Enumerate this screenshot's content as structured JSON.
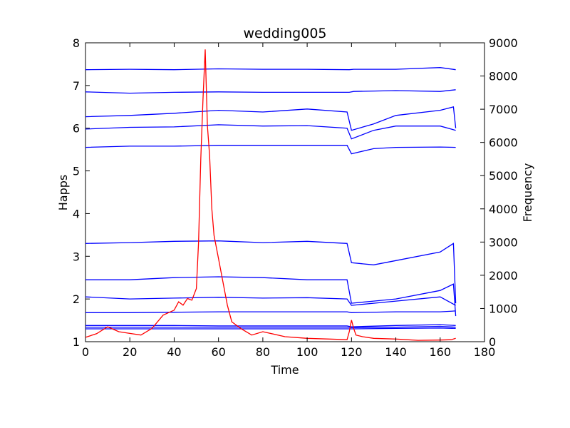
{
  "chart_data": {
    "type": "line",
    "title": "wedding005",
    "xlabel": "Time",
    "ylabel": "Happs",
    "y2label": "Frequency",
    "xlim": [
      0,
      180
    ],
    "ylim": [
      1,
      8
    ],
    "y2lim": [
      0,
      9000
    ],
    "x_ticks": [
      "0",
      "20",
      "40",
      "60",
      "80",
      "100",
      "120",
      "140",
      "160",
      "180"
    ],
    "y_ticks": [
      "1",
      "2",
      "3",
      "4",
      "5",
      "6",
      "7",
      "8"
    ],
    "y2_ticks": [
      "0",
      "1000",
      "2000",
      "3000",
      "4000",
      "5000",
      "6000",
      "7000",
      "8000",
      "9000"
    ],
    "grid": false,
    "happs_color": "#0000ff",
    "frequency_color": "#ff0000",
    "happs_series": [
      {
        "x": [
          0,
          20,
          40,
          60,
          80,
          100,
          119,
          121,
          140,
          160,
          167
        ],
        "y": [
          7.37,
          7.38,
          7.37,
          7.39,
          7.38,
          7.38,
          7.37,
          7.38,
          7.38,
          7.42,
          7.37
        ]
      },
      {
        "x": [
          0,
          20,
          40,
          60,
          80,
          100,
          119,
          121,
          140,
          160,
          167
        ],
        "y": [
          6.85,
          6.82,
          6.84,
          6.85,
          6.84,
          6.84,
          6.84,
          6.86,
          6.88,
          6.86,
          6.9
        ]
      },
      {
        "x": [
          0,
          20,
          40,
          60,
          80,
          100,
          118,
          120,
          130,
          140,
          160,
          166,
          167
        ],
        "y": [
          6.27,
          6.3,
          6.35,
          6.42,
          6.38,
          6.45,
          6.38,
          5.95,
          6.1,
          6.3,
          6.42,
          6.5,
          6.0
        ]
      },
      {
        "x": [
          0,
          20,
          40,
          60,
          80,
          100,
          118,
          120,
          130,
          140,
          160,
          167
        ],
        "y": [
          5.98,
          6.02,
          6.03,
          6.08,
          6.05,
          6.06,
          6.0,
          5.75,
          5.95,
          6.05,
          6.05,
          5.95
        ]
      },
      {
        "x": [
          0,
          20,
          40,
          60,
          80,
          100,
          118,
          120,
          130,
          140,
          160,
          167
        ],
        "y": [
          5.55,
          5.58,
          5.58,
          5.6,
          5.6,
          5.6,
          5.6,
          5.4,
          5.52,
          5.55,
          5.56,
          5.55
        ]
      },
      {
        "x": [
          0,
          20,
          40,
          60,
          80,
          100,
          118,
          120,
          130,
          140,
          160,
          166,
          167
        ],
        "y": [
          3.3,
          3.32,
          3.35,
          3.36,
          3.32,
          3.35,
          3.3,
          2.85,
          2.8,
          2.9,
          3.1,
          3.3,
          1.9
        ]
      },
      {
        "x": [
          0,
          20,
          40,
          60,
          80,
          100,
          118,
          120,
          130,
          140,
          160,
          166,
          167
        ],
        "y": [
          2.45,
          2.45,
          2.5,
          2.52,
          2.5,
          2.45,
          2.45,
          1.9,
          1.95,
          2.0,
          2.2,
          2.35,
          1.6
        ]
      },
      {
        "x": [
          0,
          20,
          40,
          60,
          80,
          100,
          118,
          120,
          130,
          140,
          160,
          167
        ],
        "y": [
          2.05,
          2.0,
          2.02,
          2.04,
          2.02,
          2.03,
          2.0,
          1.85,
          1.9,
          1.95,
          2.05,
          1.85
        ]
      },
      {
        "x": [
          0,
          20,
          40,
          60,
          80,
          100,
          118,
          120,
          140,
          160,
          167
        ],
        "y": [
          1.68,
          1.68,
          1.69,
          1.7,
          1.7,
          1.7,
          1.7,
          1.68,
          1.7,
          1.7,
          1.72
        ]
      },
      {
        "x": [
          0,
          20,
          40,
          60,
          80,
          100,
          118,
          120,
          140,
          160,
          167
        ],
        "y": [
          1.38,
          1.38,
          1.38,
          1.37,
          1.37,
          1.37,
          1.37,
          1.35,
          1.38,
          1.4,
          1.38
        ]
      },
      {
        "x": [
          0,
          20,
          40,
          60,
          80,
          100,
          118,
          120,
          140,
          160,
          167
        ],
        "y": [
          1.34,
          1.34,
          1.34,
          1.34,
          1.34,
          1.34,
          1.34,
          1.33,
          1.34,
          1.36,
          1.34
        ]
      },
      {
        "x": [
          0,
          20,
          40,
          60,
          80,
          100,
          118,
          120,
          140,
          160,
          167
        ],
        "y": [
          1.3,
          1.3,
          1.3,
          1.3,
          1.3,
          1.3,
          1.3,
          1.3,
          1.31,
          1.32,
          1.31
        ]
      }
    ],
    "frequency_series": {
      "x": [
        0,
        5,
        10,
        15,
        20,
        25,
        30,
        35,
        40,
        42,
        44,
        46,
        48,
        50,
        51,
        52,
        53,
        54,
        55,
        56,
        57,
        58,
        60,
        62,
        64,
        66,
        70,
        75,
        80,
        90,
        100,
        110,
        118,
        119,
        120,
        121,
        122,
        125,
        130,
        140,
        150,
        160,
        165,
        167
      ],
      "y": [
        130,
        240,
        450,
        300,
        250,
        200,
        400,
        800,
        950,
        1200,
        1100,
        1300,
        1250,
        1600,
        3000,
        5500,
        7300,
        8800,
        6500,
        5600,
        4000,
        3200,
        2500,
        1800,
        1100,
        600,
        400,
        200,
        300,
        150,
        100,
        80,
        60,
        300,
        650,
        400,
        200,
        150,
        100,
        80,
        40,
        50,
        60,
        100
      ]
    }
  }
}
